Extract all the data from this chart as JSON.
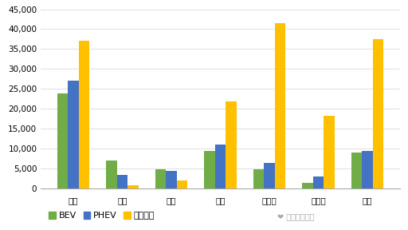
{
  "categories": [
    "德国",
    "挤威",
    "瑞典",
    "法国",
    "意大利",
    "西班牙",
    "英国"
  ],
  "series": {
    "BEV": [
      23800,
      7100,
      4900,
      9400,
      4900,
      1500,
      9000
    ],
    "PHEV": [
      27000,
      3400,
      4400,
      11000,
      6500,
      3000,
      9400
    ],
    "混合动力": [
      37000,
      900,
      2000,
      21800,
      41500,
      18200,
      37500
    ]
  },
  "colors": {
    "BEV": "#70AD47",
    "PHEV": "#4472C4",
    "混合动力": "#FFC000"
  },
  "ylim": [
    0,
    45000
  ],
  "yticks": [
    0,
    5000,
    10000,
    15000,
    20000,
    25000,
    30000,
    35000,
    40000,
    45000
  ],
  "bar_width": 0.22,
  "background_color": "#FFFFFF",
  "grid_color": "#D9D9D9",
  "legend_labels": [
    "BEV",
    "PHEV",
    "混合动力"
  ],
  "watermark": "汽车电子设计",
  "font_size": 8,
  "tick_fontsize": 7.5
}
